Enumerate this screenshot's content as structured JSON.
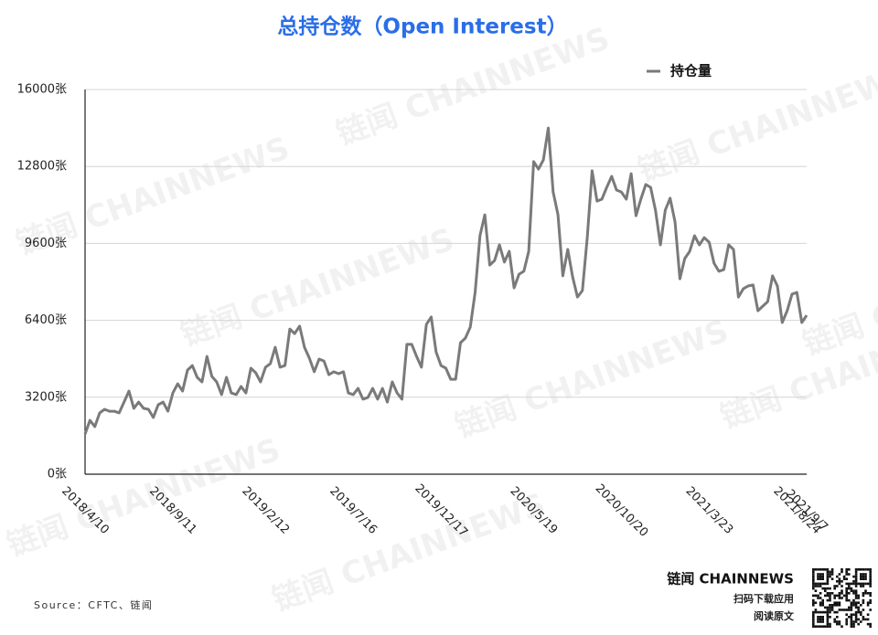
{
  "chart_data": {
    "type": "line",
    "title": "总持仓数（Open Interest）",
    "categories": [
      "2018/4/10",
      null,
      null,
      null,
      null,
      null,
      null,
      null,
      null,
      null,
      null,
      null,
      null,
      null,
      null,
      null,
      null,
      null,
      "2018/9/11",
      null,
      null,
      null,
      null,
      null,
      null,
      null,
      null,
      null,
      null,
      null,
      null,
      null,
      null,
      null,
      null,
      null,
      null,
      "2019/2/12",
      null,
      null,
      null,
      null,
      null,
      null,
      null,
      null,
      null,
      null,
      null,
      null,
      null,
      null,
      null,
      null,
      null,
      "2019/7/16",
      null,
      null,
      null,
      null,
      null,
      null,
      null,
      null,
      null,
      null,
      null,
      null,
      null,
      null,
      null,
      null,
      null,
      "2019/12/17",
      null,
      null,
      null,
      null,
      null,
      null,
      null,
      null,
      null,
      null,
      null,
      null,
      null,
      null,
      null,
      null,
      null,
      null,
      "2020/5/19",
      null,
      null,
      null,
      null,
      null,
      null,
      null,
      null,
      null,
      null,
      null,
      null,
      null,
      null,
      null,
      null,
      null,
      "2020/10/20",
      null,
      null,
      null,
      null,
      null,
      null,
      null,
      null,
      null,
      null,
      null,
      null,
      null,
      null,
      null,
      null,
      null,
      "2021/3/23",
      null,
      null,
      null,
      null,
      null,
      null,
      null,
      null,
      null,
      null,
      null,
      null,
      null,
      null,
      null,
      null,
      null,
      "2021/8/24",
      null,
      "2021/9/7"
    ],
    "series": [
      {
        "name": "持仓量",
        "color": "#7a7a7a",
        "values": [
          1670,
          2240,
          1980,
          2550,
          2700,
          2620,
          2620,
          2550,
          3000,
          3460,
          2740,
          3000,
          2740,
          2700,
          2360,
          2890,
          3000,
          2620,
          3380,
          3760,
          3460,
          4330,
          4520,
          4030,
          3840,
          4900,
          4070,
          3840,
          3310,
          4030,
          3380,
          3310,
          3650,
          3380,
          4410,
          4220,
          3840,
          4450,
          4600,
          5280,
          4450,
          4520,
          6040,
          5850,
          6160,
          5280,
          4830,
          4260,
          4790,
          4710,
          4140,
          4260,
          4180,
          4260,
          3380,
          3310,
          3570,
          3120,
          3190,
          3570,
          3120,
          3570,
          3000,
          3840,
          3380,
          3120,
          5400,
          5400,
          4900,
          4450,
          6230,
          6540,
          5090,
          4520,
          4410,
          3950,
          3950,
          5470,
          5660,
          6120,
          7560,
          9920,
          10790,
          8700,
          8890,
          9540,
          8820,
          9270,
          7750,
          8320,
          8440,
          9270,
          13000,
          12690,
          13070,
          14400,
          11740,
          10790,
          8250,
          9350,
          8210,
          7370,
          7640,
          9840,
          12620,
          11360,
          11440,
          11930,
          12390,
          11820,
          11740,
          11440,
          12500,
          10750,
          11440,
          12050,
          11930,
          10980,
          9540,
          10980,
          11480,
          10490,
          8130,
          8970,
          9270,
          9920,
          9540,
          9840,
          9650,
          8780,
          8440,
          8510,
          9540,
          9350,
          7370,
          7710,
          7830,
          7870,
          6800,
          6990,
          7180,
          8250,
          7830,
          6310,
          6800,
          7490,
          7560,
          6310,
          6610
        ]
      }
    ],
    "ylim": [
      0,
      16000
    ],
    "yticks": [
      {
        "value": 0,
        "label": "0张"
      },
      {
        "value": 3200,
        "label": "3200张"
      },
      {
        "value": 6400,
        "label": "6400张"
      },
      {
        "value": 9600,
        "label": "9600张"
      },
      {
        "value": 12800,
        "label": "12800张"
      },
      {
        "value": 16000,
        "label": "16000张"
      }
    ],
    "grid": true,
    "legend": "top-right",
    "source": "Source：CFTC、链闻"
  },
  "branding": {
    "watermark": "链闻 CHAINNEWS",
    "logo": "链闻 CHAINNEWS",
    "download": "扫码下载应用",
    "read": "阅读原文"
  }
}
